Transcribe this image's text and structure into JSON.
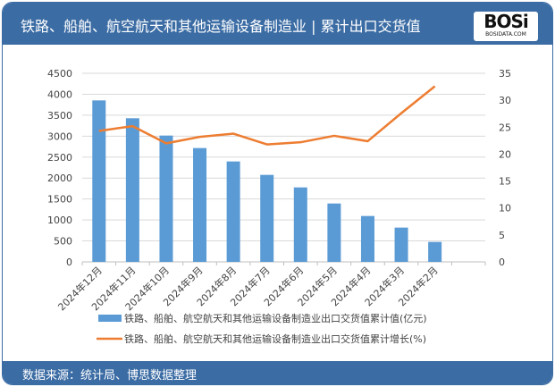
{
  "header": {
    "title": "铁路、船舶、航空航天和其他运输设备制造业 | 累计出口交货值",
    "logo_text": "BOSi",
    "logo_sub": "BOSIDATA.COM"
  },
  "footer": {
    "source": "数据来源：统计局、博思数据整理"
  },
  "colors": {
    "bar": "#5b9bd5",
    "line": "#ed7d31",
    "header": "#3b6ca4"
  },
  "chart_data": {
    "type": "bar+line",
    "categories": [
      "2024年12月",
      "2024年11月",
      "2024年10月",
      "2024年9月",
      "2024年8月",
      "2024年7月",
      "2024年6月",
      "2024年5月",
      "2024年4月",
      "2024年3月",
      "2024年2月"
    ],
    "series": [
      {
        "name": "铁路、船舶、航空航天和其他运输设备制造业出口交货值累计值(亿元)",
        "type": "bar",
        "axis": "left",
        "values": [
          3853,
          3427,
          3014,
          2716,
          2396,
          2076,
          1777,
          1393,
          1095,
          818,
          476
        ]
      },
      {
        "name": "铁路、船舶、航空航天和其他运输设备制造业出口交货值累计增长(%)",
        "type": "line",
        "axis": "right",
        "values": [
          24.3,
          25.2,
          22.0,
          23.2,
          23.8,
          21.8,
          22.2,
          23.4,
          22.4,
          27.6,
          32.6
        ]
      }
    ],
    "y_left": {
      "range": [
        0,
        4500
      ],
      "ticks": [
        "0",
        "500",
        "1000",
        "1500",
        "2000",
        "2500",
        "3000",
        "3500",
        "4000",
        "4500"
      ]
    },
    "y_right": {
      "range": [
        0,
        35
      ],
      "ticks": [
        "0",
        "5",
        "10",
        "15",
        "20",
        "25",
        "30",
        "35"
      ]
    },
    "grid": true,
    "legend": "bottom"
  }
}
